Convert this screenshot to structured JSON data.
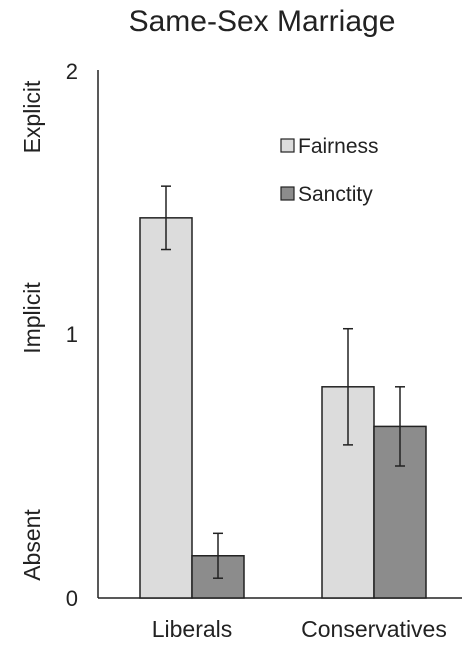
{
  "chart_data": {
    "type": "bar",
    "title": "Same-Sex Marriage",
    "xlabel": "",
    "ylabel": "",
    "categories": [
      "Liberals",
      "Conservatives"
    ],
    "ylim": [
      0,
      2
    ],
    "yticks": [
      "0",
      "1",
      "2"
    ],
    "ytick_values": [
      0,
      1,
      2
    ],
    "level_labels": [
      "Absent",
      "Implicit",
      "Explicit"
    ],
    "grid": false,
    "legend_position": "top-right",
    "series": [
      {
        "name": "Fairness",
        "color": "#dcdcdc",
        "values": [
          1.44,
          0.8
        ],
        "error": [
          0.12,
          0.22
        ]
      },
      {
        "name": "Sanctity",
        "color": "#8c8c8c",
        "values": [
          0.16,
          0.65
        ],
        "error": [
          0.085,
          0.15
        ]
      }
    ]
  }
}
